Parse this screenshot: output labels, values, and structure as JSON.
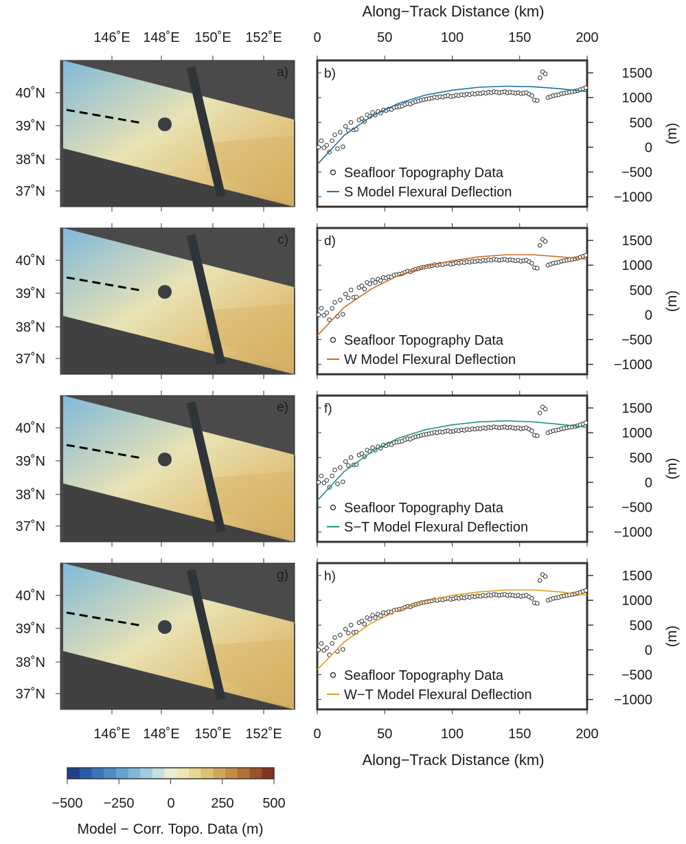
{
  "figure": {
    "top_xlabel": "Along−Track Distance (km)",
    "bottom_xlabel": "Along−Track Distance (km)",
    "colorbar_label": "Model − Corr. Topo. Data (m)"
  },
  "map": {
    "lon_ticks": [
      "146˚E",
      "148˚E",
      "150˚E",
      "152˚E"
    ],
    "lat_ticks": [
      "40˚N",
      "39˚N",
      "38˚N",
      "37˚N"
    ]
  },
  "colorbar": {
    "ticks": [
      "−500",
      "−250",
      "0",
      "250",
      "500"
    ],
    "colors": [
      "#1f3f8f",
      "#2b5aa8",
      "#3b74bb",
      "#4d8cc7",
      "#63a3d2",
      "#7fb9db",
      "#a0cde0",
      "#c6e0de",
      "#e7ecd4",
      "#eee6b0",
      "#e6d68f",
      "#dcc171",
      "#d1a857",
      "#c48c43",
      "#b46f34",
      "#9f5128",
      "#86341f"
    ]
  },
  "x_axis": {
    "ticks": [
      "0",
      "50",
      "100",
      "150",
      "200"
    ]
  },
  "y_axis": {
    "ticks": [
      "1500",
      "1000",
      "500",
      "0",
      "−500",
      "−1000"
    ],
    "unit": "(m)"
  },
  "panels": [
    {
      "map_label": "a)",
      "plot_label": "b)",
      "legend_data": "Seafloor Topography Data",
      "legend_model": "S Model Flexural Deflection",
      "color": "#1a6fa8"
    },
    {
      "map_label": "c)",
      "plot_label": "d)",
      "legend_data": "Seafloor Topography Data",
      "legend_model": "W Model Flexural Deflection",
      "color": "#d2691e"
    },
    {
      "map_label": "e)",
      "plot_label": "f)",
      "legend_data": "Seafloor Topography Data",
      "legend_model": "S−T Model Flexural Deflection",
      "color": "#1a9970"
    },
    {
      "map_label": "g)",
      "plot_label": "h)",
      "legend_data": "Seafloor Topography Data",
      "legend_model": "W−T Model Flexural Deflection",
      "color": "#e39a1a"
    }
  ],
  "chart_data": {
    "type": "scatter",
    "xlabel": "Along−Track Distance (km)",
    "ylabel": "(m)",
    "xlim": [
      0,
      200
    ],
    "ylim": [
      -1200,
      1750
    ],
    "series": [
      {
        "name": "Seafloor Topography Data",
        "x": [
          1,
          3,
          5,
          7,
          9,
          11,
          13,
          15,
          17,
          19,
          21,
          23,
          25,
          27,
          29,
          31,
          33,
          35,
          37,
          39,
          41,
          43,
          45,
          47,
          49,
          51,
          53,
          55,
          57,
          59,
          61,
          63,
          65,
          67,
          69,
          71,
          73,
          75,
          77,
          79,
          81,
          83,
          85,
          87,
          89,
          91,
          93,
          95,
          97,
          99,
          101,
          103,
          105,
          107,
          109,
          111,
          113,
          115,
          117,
          119,
          121,
          123,
          125,
          127,
          129,
          131,
          133,
          135,
          137,
          139,
          141,
          143,
          145,
          147,
          149,
          151,
          153,
          155,
          157,
          159,
          161,
          163,
          165,
          167,
          169,
          171,
          173,
          175,
          177,
          179,
          181,
          183,
          185,
          187,
          189,
          191,
          193,
          195,
          197,
          199
        ],
        "y": [
          0,
          130,
          -10,
          40,
          -100,
          130,
          250,
          -30,
          300,
          10,
          420,
          340,
          500,
          350,
          360,
          550,
          580,
          520,
          650,
          620,
          700,
          650,
          720,
          690,
          750,
          740,
          770,
          760,
          800,
          810,
          820,
          830,
          860,
          880,
          870,
          900,
          920,
          930,
          950,
          960,
          970,
          980,
          990,
          1010,
          1000,
          1020,
          1010,
          1030,
          1040,
          1020,
          1030,
          1050,
          1040,
          1060,
          1050,
          1070,
          1060,
          1080,
          1070,
          1090,
          1080,
          1100,
          1090,
          1110,
          1100,
          1120,
          1110,
          1100,
          1110,
          1120,
          1100,
          1110,
          1100,
          1090,
          1100,
          1080,
          1090,
          1100,
          1070,
          1040,
          950,
          940,
          1400,
          1520,
          1480,
          1000,
          1020,
          1040,
          1050,
          1060,
          1080,
          1090,
          1100,
          1110,
          1120,
          1130,
          1140,
          1160,
          1180,
          1200
        ]
      },
      {
        "name": "S Model Flexural Deflection",
        "x": [
          0,
          20,
          40,
          60,
          80,
          100,
          120,
          140,
          160,
          180,
          200
        ],
        "y": [
          -350,
          240,
          620,
          880,
          1050,
          1150,
          1210,
          1230,
          1220,
          1180,
          1120
        ]
      },
      {
        "name": "W Model Flexural Deflection",
        "x": [
          0,
          20,
          40,
          60,
          80,
          100,
          120,
          140,
          160,
          180,
          200
        ],
        "y": [
          -420,
          150,
          520,
          790,
          970,
          1090,
          1170,
          1210,
          1210,
          1170,
          1120
        ]
      },
      {
        "name": "S−T Model Flexural Deflection",
        "x": [
          0,
          20,
          40,
          60,
          80,
          100,
          120,
          140,
          160,
          180,
          200
        ],
        "y": [
          -370,
          220,
          610,
          890,
          1060,
          1160,
          1220,
          1240,
          1220,
          1170,
          1110
        ]
      },
      {
        "name": "W−T Model Flexural Deflection",
        "x": [
          0,
          20,
          40,
          60,
          80,
          100,
          120,
          140,
          160,
          180,
          200
        ],
        "y": [
          -400,
          160,
          540,
          800,
          980,
          1100,
          1170,
          1210,
          1210,
          1170,
          1100
        ]
      }
    ]
  }
}
